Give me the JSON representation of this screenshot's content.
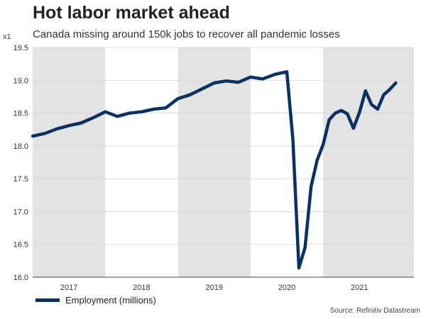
{
  "chart_data": {
    "type": "line",
    "title": "Hot labor market ahead",
    "subtitle": "Canada missing around 150k jobs to recover all pandemic losses",
    "unit_label": "x1",
    "source": "Source: Refinitiv Datastream",
    "ylim": [
      16.0,
      19.5
    ],
    "y_ticks": [
      "16.0",
      "16.5",
      "17.0",
      "17.5",
      "18.0",
      "18.5",
      "19.0",
      "19.5"
    ],
    "y_tick_values": [
      16.0,
      16.5,
      17.0,
      17.5,
      18.0,
      18.5,
      19.0,
      19.5
    ],
    "xlim": [
      "2016-08",
      "2021-11"
    ],
    "x_ticks": [
      {
        "label": "2017",
        "date": "2017-02"
      },
      {
        "label": "2018",
        "date": "2018-02"
      },
      {
        "label": "2019",
        "date": "2019-02"
      },
      {
        "label": "2020",
        "date": "2020-02"
      },
      {
        "label": "2021",
        "date": "2021-02"
      }
    ],
    "shaded_bands": [
      {
        "start": "2016-08",
        "end": "2017-08"
      },
      {
        "start": "2018-08",
        "end": "2019-08"
      },
      {
        "start": "2020-08",
        "end": "2021-11"
      }
    ],
    "band_color": "#e3e3e3",
    "line_color": "#0a3160",
    "grid": true,
    "legend_position": "bottom-left",
    "series": [
      {
        "name": "Employment (millions)",
        "x": [
          "2016-08",
          "2016-10",
          "2016-12",
          "2017-02",
          "2017-04",
          "2017-06",
          "2017-08",
          "2017-10",
          "2017-12",
          "2018-02",
          "2018-04",
          "2018-06",
          "2018-08",
          "2018-10",
          "2018-12",
          "2019-02",
          "2019-04",
          "2019-06",
          "2019-08",
          "2019-10",
          "2019-12",
          "2020-01",
          "2020-02",
          "2020-03",
          "2020-04",
          "2020-05",
          "2020-06",
          "2020-07",
          "2020-08",
          "2020-09",
          "2020-10",
          "2020-11",
          "2020-12",
          "2021-01",
          "2021-02",
          "2021-03",
          "2021-04",
          "2021-05",
          "2021-06",
          "2021-07",
          "2021-08"
        ],
        "values": [
          18.15,
          18.19,
          18.26,
          18.31,
          18.35,
          18.43,
          18.52,
          18.45,
          18.5,
          18.52,
          18.56,
          18.58,
          18.72,
          18.78,
          18.87,
          18.96,
          18.99,
          18.97,
          19.05,
          19.02,
          19.09,
          19.11,
          19.13,
          18.1,
          16.14,
          16.45,
          17.38,
          17.78,
          18.02,
          18.4,
          18.5,
          18.54,
          18.49,
          18.27,
          18.51,
          18.84,
          18.63,
          18.56,
          18.78,
          18.86,
          18.96
        ]
      }
    ]
  }
}
